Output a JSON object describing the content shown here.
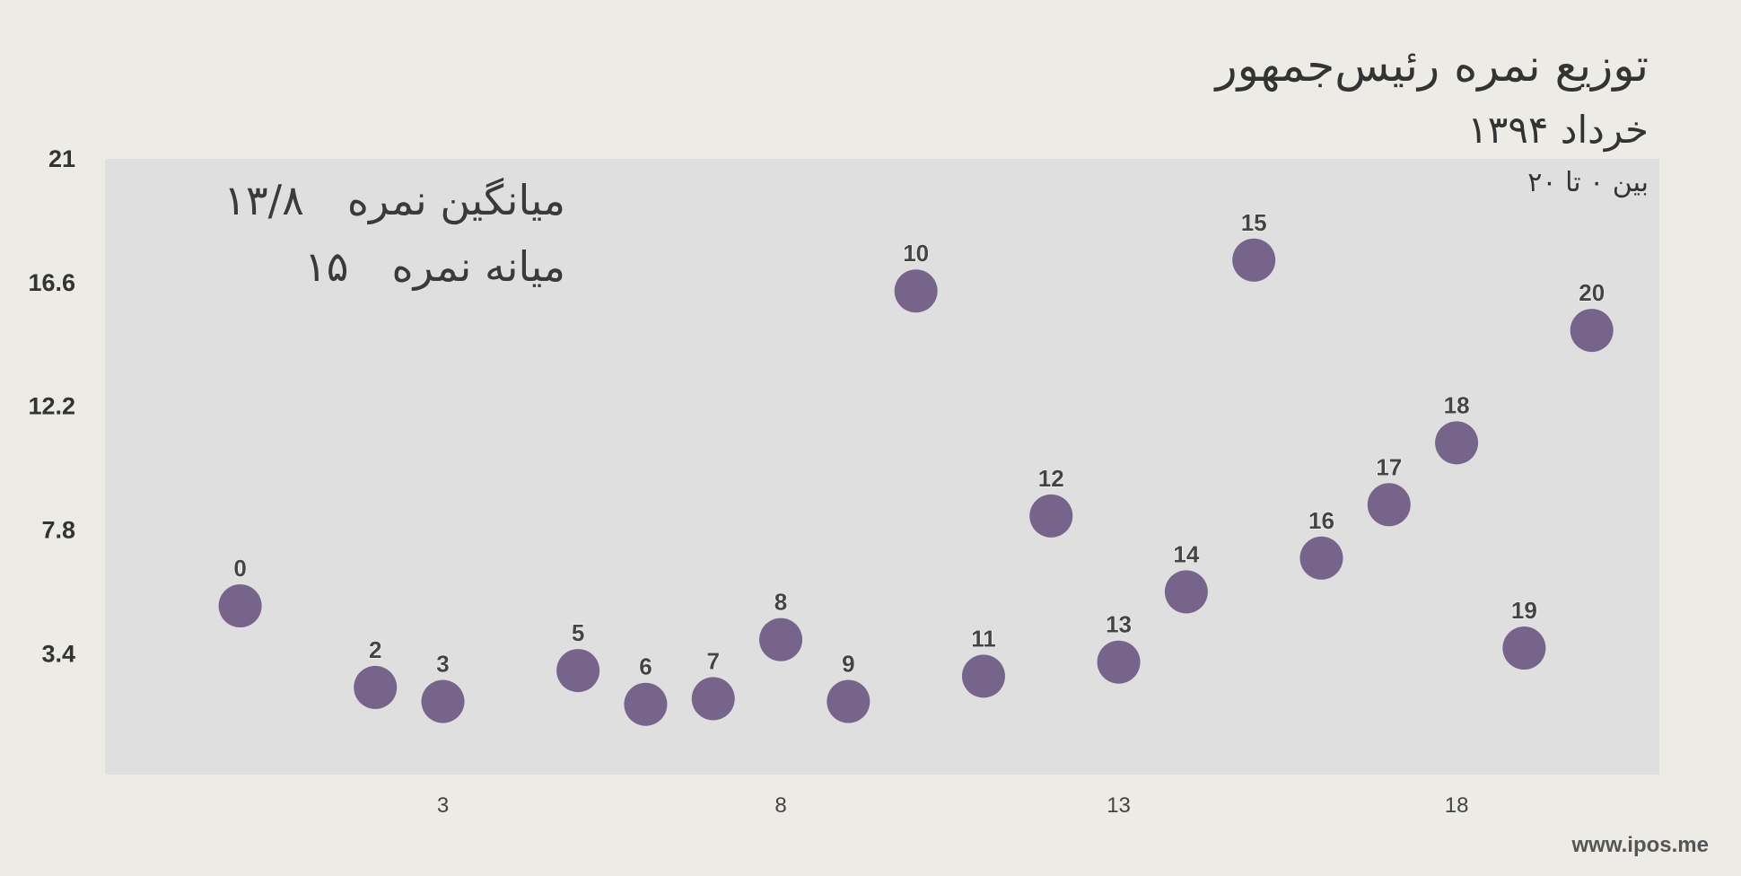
{
  "chart_data": {
    "type": "scatter",
    "title": "توزیع نمره رئیس‌جمهور",
    "subtitle": "خرداد ۱۳۹۴",
    "note": "بین ۰ تا ۲۰",
    "xlabel": "",
    "ylabel": "",
    "x_ticks": [
      3,
      8,
      13,
      18
    ],
    "y_ticks": [
      3.4,
      7.8,
      12.2,
      16.6,
      21
    ],
    "xlim": [
      -2,
      21
    ],
    "ylim": [
      -0.9,
      21
    ],
    "grid": false,
    "legend": "none",
    "marker_color": "#77648b",
    "plot_background": "#e0dfdf",
    "page_background": "#edebe6",
    "points": [
      {
        "x": 0,
        "y": 5.1,
        "label": "0"
      },
      {
        "x": 2,
        "y": 2.2,
        "label": "2"
      },
      {
        "x": 3,
        "y": 1.7,
        "label": "3"
      },
      {
        "x": 5,
        "y": 2.8,
        "label": "5"
      },
      {
        "x": 6,
        "y": 1.6,
        "label": "6"
      },
      {
        "x": 7,
        "y": 1.8,
        "label": "7"
      },
      {
        "x": 8,
        "y": 3.9,
        "label": "8"
      },
      {
        "x": 9,
        "y": 1.7,
        "label": "9"
      },
      {
        "x": 10,
        "y": 16.3,
        "label": "10"
      },
      {
        "x": 11,
        "y": 2.6,
        "label": "11"
      },
      {
        "x": 12,
        "y": 8.3,
        "label": "12"
      },
      {
        "x": 13,
        "y": 3.1,
        "label": "13"
      },
      {
        "x": 14,
        "y": 5.6,
        "label": "14"
      },
      {
        "x": 15,
        "y": 17.4,
        "label": "15"
      },
      {
        "x": 16,
        "y": 6.8,
        "label": "16"
      },
      {
        "x": 17,
        "y": 8.7,
        "label": "17"
      },
      {
        "x": 18,
        "y": 10.9,
        "label": "18"
      },
      {
        "x": 19,
        "y": 3.6,
        "label": "19"
      },
      {
        "x": 20,
        "y": 14.9,
        "label": "20"
      }
    ]
  },
  "stats": {
    "mean_label": "میانگین نمره",
    "mean_value": "۱۳/۸",
    "median_label": "میانه نمره",
    "median_value": "۱۵"
  },
  "credit": "www.ipos.me"
}
